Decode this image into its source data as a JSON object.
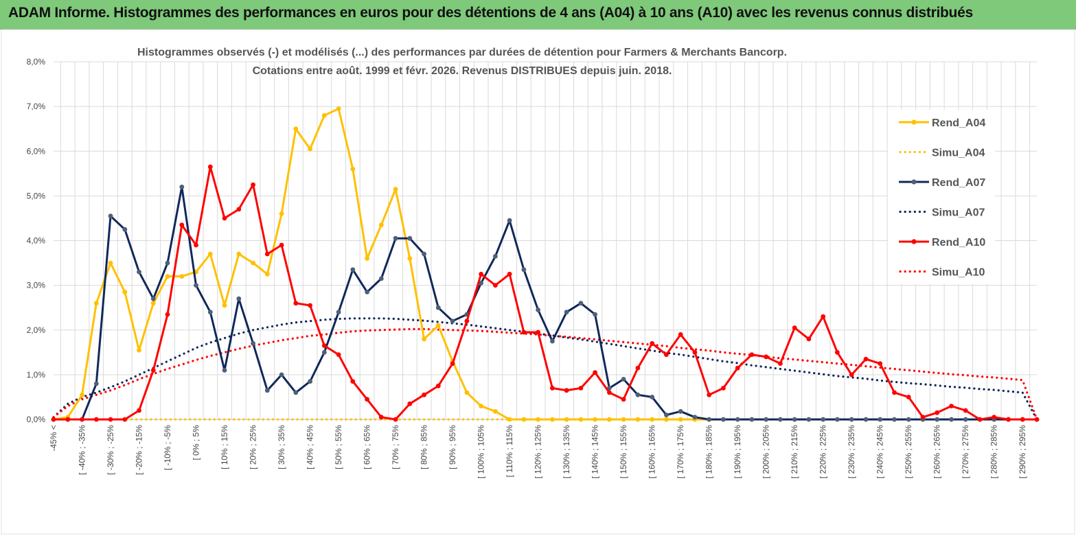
{
  "banner": {
    "title": "ADAM Informe. Histogrammes des performances en euros pour des détentions de 4 ans (A04) à 10 ans (A10) avec les revenus connus distribués"
  },
  "chart_data": {
    "type": "line",
    "title": "Histogrammes observés (-) et modélisés (...) des performances par durées de détention pour Farmers & Merchants Bancorp.",
    "subtitle": "Cotations entre août. 1999 et févr. 2026. Revenus DISTRIBUES depuis juin. 2018.",
    "ylim": [
      0,
      8
    ],
    "yticks": [
      "0,0%",
      "1,0%",
      "2,0%",
      "3,0%",
      "4,0%",
      "5,0%",
      "6,0%",
      "7,0%",
      "8,0%"
    ],
    "xlabels": [
      "-45% <",
      "[ -40% ; -35%",
      "[ -30% ; -25%",
      "[ -20% ; -15%",
      "[ -10% ; -5%",
      "[ 0% ; 5%",
      "[ 10% ; 15%",
      "[ 20% ; 25%",
      "[ 30% ; 35%",
      "[ 40% ; 45%",
      "[ 50% ; 55%",
      "[ 60% ; 65%",
      "[ 70% ; 75%",
      "[ 80% ; 85%",
      "[ 90% ; 95%",
      "[ 100% ; 105%",
      "[ 110% ; 115%",
      "[ 120% ; 125%",
      "[ 130% ; 135%",
      "[ 140% ; 145%",
      "[ 150% ; 155%",
      "[ 160% ; 165%",
      "[ 170% ; 175%",
      "[ 180% ; 185%",
      "[ 190% ; 195%",
      "[ 200% ; 205%",
      "[ 210% ; 215%",
      "[ 220% ; 225%",
      "[ 230% ; 235%",
      "[ 240% ; 245%",
      "[ 250% ; 255%",
      "[ 260% ; 265%",
      "[ 270% ; 275%",
      "[ 280% ; 285%",
      "[ 290% ; 295%"
    ],
    "n_points": 70,
    "series": [
      {
        "name": "Rend_A04",
        "color": "#ffc000",
        "style": "solid",
        "values": [
          0.0,
          0.05,
          0.55,
          2.6,
          3.5,
          2.85,
          1.55,
          2.6,
          3.2,
          3.2,
          3.3,
          3.7,
          2.55,
          3.7,
          3.5,
          3.25,
          4.6,
          6.5,
          6.05,
          6.8,
          6.95,
          5.6,
          3.6,
          4.35,
          5.15,
          3.6,
          1.8,
          2.1,
          1.3,
          0.6,
          0.3,
          0.18,
          0.0,
          0.0,
          0.0,
          0.0,
          0.0,
          0.0,
          0.0,
          0.0,
          0.0,
          0.0,
          0.0,
          0.0,
          0.0,
          0.0,
          0.0,
          0.0,
          0.0,
          0.0,
          0.0,
          0.0,
          0.0,
          0.0,
          0.0,
          0.0,
          0.0,
          0.0,
          0.0,
          0.0,
          0.0,
          0.0,
          0.0,
          0.0,
          0.0,
          0.0,
          0.0,
          0.0,
          0.0,
          0.0
        ]
      },
      {
        "name": "Simu_A04",
        "color": "#ffc000",
        "style": "dotted",
        "values": [
          0.0,
          0.0,
          0.0,
          0.0,
          0.0,
          0.0,
          0.0,
          0.0,
          0.0,
          0.0,
          0.0,
          0.0,
          0.0,
          0.0,
          0.0,
          0.0,
          0.0,
          0.0,
          0.0,
          0.0,
          0.0,
          0.0,
          0.0,
          0.0,
          0.0,
          0.0,
          0.0,
          0.0,
          0.0,
          0.0,
          0.0,
          0.0,
          0.0,
          0.0,
          0.0,
          0.0,
          0.0,
          0.0,
          0.0,
          0.0,
          0.0,
          0.0,
          0.0,
          0.0,
          0.0,
          0.0,
          0.0,
          0.0,
          0.0,
          0.0,
          0.0,
          0.0,
          0.0,
          0.0,
          0.0,
          0.0,
          0.0,
          0.0,
          0.0,
          0.0,
          0.0,
          0.0,
          0.0,
          0.0,
          0.0,
          0.0,
          0.0,
          0.0,
          0.0,
          0.0
        ]
      },
      {
        "name": "Rend_A07",
        "color": "#10285a",
        "style": "solid",
        "values": [
          0.0,
          0.0,
          0.0,
          0.8,
          4.55,
          4.25,
          3.3,
          2.7,
          3.5,
          5.2,
          3.0,
          2.4,
          1.1,
          2.7,
          1.7,
          0.65,
          1.0,
          0.6,
          0.85,
          1.5,
          2.4,
          3.35,
          2.85,
          3.15,
          4.05,
          4.05,
          3.7,
          2.5,
          2.2,
          2.35,
          3.05,
          3.65,
          4.45,
          3.35,
          2.45,
          1.75,
          2.4,
          2.6,
          2.35,
          0.7,
          0.9,
          0.55,
          0.5,
          0.1,
          0.18,
          0.05,
          0.0,
          0.0,
          0.0,
          0.0,
          0.0,
          0.0,
          0.0,
          0.0,
          0.0,
          0.0,
          0.0,
          0.0,
          0.0,
          0.0,
          0.0,
          0.0,
          0.0,
          0.0,
          0.0,
          0.0,
          0.0,
          0.0,
          0.0,
          0.0
        ]
      },
      {
        "name": "Simu_A07",
        "color": "#10285a",
        "style": "dotted",
        "values": [
          0.05,
          0.35,
          0.5,
          0.6,
          0.72,
          0.85,
          1.0,
          1.15,
          1.3,
          1.45,
          1.6,
          1.72,
          1.82,
          1.92,
          2.0,
          2.06,
          2.12,
          2.17,
          2.2,
          2.23,
          2.25,
          2.26,
          2.26,
          2.26,
          2.25,
          2.23,
          2.21,
          2.18,
          2.15,
          2.12,
          2.08,
          2.04,
          2.0,
          1.96,
          1.92,
          1.88,
          1.83,
          1.79,
          1.74,
          1.69,
          1.64,
          1.59,
          1.54,
          1.49,
          1.45,
          1.4,
          1.35,
          1.3,
          1.26,
          1.21,
          1.17,
          1.13,
          1.09,
          1.05,
          1.01,
          0.97,
          0.94,
          0.91,
          0.87,
          0.84,
          0.81,
          0.79,
          0.76,
          0.73,
          0.71,
          0.68,
          0.66,
          0.63,
          0.6,
          0.0
        ]
      },
      {
        "name": "Rend_A10",
        "color": "#ff0000",
        "style": "solid",
        "values": [
          0.0,
          0.0,
          0.0,
          0.0,
          0.0,
          0.0,
          0.2,
          1.1,
          2.35,
          4.35,
          3.9,
          5.65,
          4.5,
          4.7,
          5.25,
          3.7,
          3.9,
          2.6,
          2.55,
          1.65,
          1.45,
          0.85,
          0.45,
          0.05,
          0.0,
          0.35,
          0.55,
          0.75,
          1.25,
          2.2,
          3.25,
          3.0,
          3.25,
          1.95,
          1.95,
          0.7,
          0.65,
          0.7,
          1.05,
          0.6,
          0.45,
          1.15,
          1.7,
          1.45,
          1.9,
          1.5,
          0.55,
          0.7,
          1.15,
          1.45,
          1.4,
          1.25,
          2.05,
          1.8,
          2.3,
          1.5,
          1.0,
          1.35,
          1.25,
          0.6,
          0.5,
          0.05,
          0.15,
          0.3,
          0.2,
          0.0,
          0.05,
          0.0,
          0.0,
          0.0
        ]
      },
      {
        "name": "Simu_A10",
        "color": "#ff0000",
        "style": "dotted",
        "values": [
          0.05,
          0.3,
          0.45,
          0.55,
          0.65,
          0.77,
          0.9,
          1.02,
          1.13,
          1.23,
          1.33,
          1.42,
          1.5,
          1.58,
          1.65,
          1.71,
          1.77,
          1.82,
          1.87,
          1.9,
          1.94,
          1.97,
          1.99,
          2.0,
          2.01,
          2.02,
          2.02,
          2.01,
          2.0,
          1.99,
          1.98,
          1.96,
          1.94,
          1.92,
          1.9,
          1.87,
          1.85,
          1.82,
          1.79,
          1.76,
          1.73,
          1.7,
          1.67,
          1.64,
          1.6,
          1.57,
          1.54,
          1.5,
          1.47,
          1.44,
          1.4,
          1.37,
          1.34,
          1.31,
          1.28,
          1.25,
          1.22,
          1.19,
          1.16,
          1.13,
          1.1,
          1.07,
          1.04,
          1.01,
          0.99,
          0.96,
          0.94,
          0.91,
          0.88,
          0.0
        ]
      }
    ],
    "legend_position": "right"
  }
}
